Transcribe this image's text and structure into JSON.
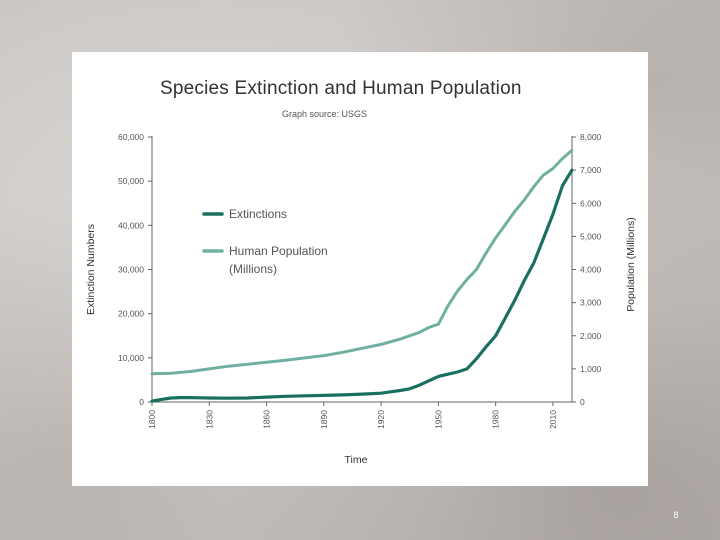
{
  "page": {
    "number": "8"
  },
  "chart_data": {
    "type": "line",
    "title": "Species Extinction and Human Population",
    "subtitle": "Graph source: USGS",
    "xlabel": "Time",
    "ylabel_left": "Extinction Numbers",
    "ylabel_right": "Population (Millions)",
    "x_ticks": [
      "1800",
      "1830",
      "1860",
      "1890",
      "1920",
      "1950",
      "1980",
      "2010"
    ],
    "y_left_ticks": [
      "0",
      "10,000",
      "20,000",
      "30,000",
      "40,000",
      "50,000",
      "60,000"
    ],
    "y_right_ticks": [
      "0",
      "1,000",
      "2,000",
      "3,000",
      "4,000",
      "5,000",
      "6,000",
      "7,000",
      "8,000"
    ],
    "xlim": [
      1800,
      2020
    ],
    "ylim_left": [
      0,
      60000
    ],
    "ylim_right": [
      0,
      8000
    ],
    "grid": false,
    "legend_position": "upper-left",
    "series": [
      {
        "name": "Extinctions",
        "legend_label": "Extinctions",
        "axis": "left",
        "color": "#1a7060",
        "x": [
          1800,
          1805,
          1810,
          1815,
          1820,
          1825,
          1830,
          1840,
          1850,
          1860,
          1870,
          1880,
          1890,
          1900,
          1910,
          1920,
          1925,
          1930,
          1935,
          1940,
          1945,
          1950,
          1955,
          1960,
          1965,
          1970,
          1975,
          1980,
          1985,
          1990,
          1995,
          2000,
          2005,
          2010,
          2015,
          2020
        ],
        "values": [
          200,
          600,
          900,
          1000,
          1000,
          950,
          900,
          850,
          900,
          1100,
          1300,
          1400,
          1500,
          1600,
          1800,
          2000,
          2300,
          2600,
          3000,
          3800,
          4800,
          5800,
          6300,
          6800,
          7500,
          9800,
          12500,
          15000,
          19000,
          23000,
          27500,
          31500,
          37000,
          42500,
          49000,
          52500
        ]
      },
      {
        "name": "Human Population (Millions)",
        "legend_label_line1": "Human Population",
        "legend_label_line2": "(Millions)",
        "axis": "right",
        "color": "#6fb0a2",
        "x": [
          1800,
          1810,
          1820,
          1830,
          1840,
          1850,
          1860,
          1870,
          1880,
          1890,
          1900,
          1910,
          1920,
          1930,
          1940,
          1945,
          1950,
          1955,
          1960,
          1965,
          1970,
          1975,
          1980,
          1985,
          1990,
          1995,
          2000,
          2005,
          2010,
          2015,
          2020
        ],
        "values": [
          850,
          870,
          920,
          1000,
          1080,
          1140,
          1200,
          1260,
          1330,
          1400,
          1500,
          1620,
          1740,
          1900,
          2100,
          2250,
          2350,
          2900,
          3350,
          3700,
          4000,
          4500,
          4950,
          5350,
          5750,
          6100,
          6500,
          6850,
          7050,
          7350,
          7600
        ]
      }
    ]
  }
}
